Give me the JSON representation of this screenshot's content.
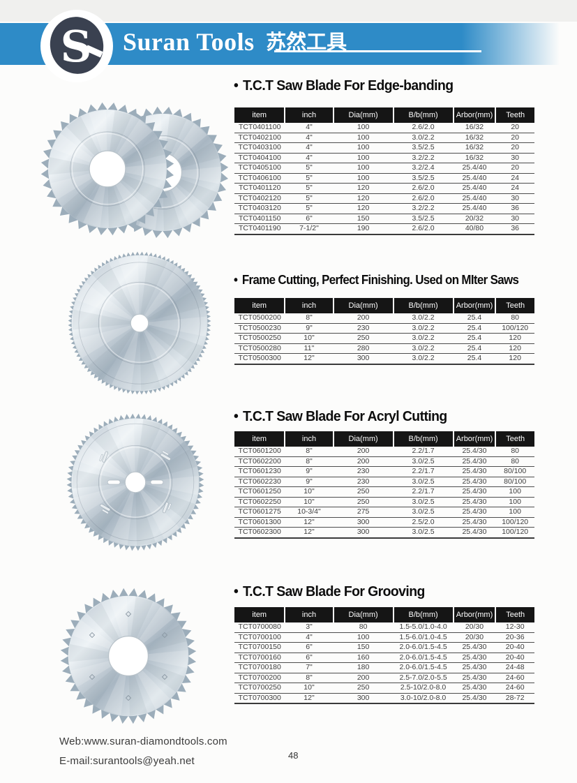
{
  "header": {
    "brand_en": "Suran Tools",
    "brand_cn": "苏然工具",
    "logo_monogram": "S"
  },
  "sections": [
    {
      "bullet": "•",
      "title": "T.C.T Saw Blade For Edge-banding",
      "image": "two-overlapping-tct-saw-blades",
      "columns": [
        "item",
        "inch",
        "Dia(mm)",
        "B/b(mm)",
        "Arbor(mm)",
        "Teeth"
      ],
      "rows": [
        [
          "TCT0401100",
          "4\"",
          "100",
          "2.6/2.0",
          "16/32",
          "20"
        ],
        [
          "TCT0402100",
          "4\"",
          "100",
          "3.0/2.2",
          "16/32",
          "20"
        ],
        [
          "TCT0403100",
          "4\"",
          "100",
          "3.5/2.5",
          "16/32",
          "20"
        ],
        [
          "TCT0404100",
          "4\"",
          "100",
          "3.2/2.2",
          "16/32",
          "30"
        ],
        [
          "TCT0405100",
          "5\"",
          "100",
          "3.2/2.4",
          "25.4/40",
          "20"
        ],
        [
          "TCT0406100",
          "5\"",
          "100",
          "3.5/2.5",
          "25.4/40",
          "24"
        ],
        [
          "TCT0401120",
          "5\"",
          "120",
          "2.6/2.0",
          "25.4/40",
          "24"
        ],
        [
          "TCT0402120",
          "5\"",
          "120",
          "2.6/2.0",
          "25.4/40",
          "30"
        ],
        [
          "TCT0403120",
          "5\"",
          "120",
          "3.2/2.2",
          "25.4/40",
          "36"
        ],
        [
          "TCT0401150",
          "6\"",
          "150",
          "3.5/2.5",
          "20/32",
          "30"
        ],
        [
          "TCT0401190",
          "7-1/2\"",
          "190",
          "2.6/2.0",
          "40/80",
          "36"
        ]
      ]
    },
    {
      "bullet": "•",
      "title": "Frame Cutting, Perfect Finishing. Used on MIter Saws",
      "image": "fine-tooth-tct-saw-blade",
      "columns": [
        "item",
        "inch",
        "Dia(mm)",
        "B/b(mm)",
        "Arbor(mm)",
        "Teeth"
      ],
      "rows": [
        [
          "TCT0500200",
          "8\"",
          "200",
          "3.0/2.2",
          "25.4",
          "80"
        ],
        [
          "TCT0500230",
          "9\"",
          "230",
          "3.0/2.2",
          "25.4",
          "100/120"
        ],
        [
          "TCT0500250",
          "10\"",
          "250",
          "3.0/2.2",
          "25.4",
          "120"
        ],
        [
          "TCT0500280",
          "11\"",
          "280",
          "3.0/2.2",
          "25.4",
          "120"
        ],
        [
          "TCT0500300",
          "12\"",
          "300",
          "3.0/2.2",
          "25.4",
          "120"
        ]
      ]
    },
    {
      "bullet": "•",
      "title": "T.C.T Saw Blade For Acryl Cutting",
      "image": "tct-saw-blade-with-expansion-slots",
      "columns": [
        "item",
        "inch",
        "Dia(mm)",
        "B/b(mm)",
        "Arbor(mm)",
        "Teeth"
      ],
      "rows": [
        [
          "TCT0601200",
          "8\"",
          "200",
          "2.2/1.7",
          "25.4/30",
          "80"
        ],
        [
          "TCT0602200",
          "8\"",
          "200",
          "3.0/2.5",
          "25.4/30",
          "80"
        ],
        [
          "TCT0601230",
          "9\"",
          "230",
          "2.2/1.7",
          "25.4/30",
          "80/100"
        ],
        [
          "TCT0602230",
          "9\"",
          "230",
          "3.0/2.5",
          "25.4/30",
          "80/100"
        ],
        [
          "TCT0601250",
          "10\"",
          "250",
          "2.2/1.7",
          "25.4/30",
          "100"
        ],
        [
          "TCT0602250",
          "10\"",
          "250",
          "3.0/2.5",
          "25.4/30",
          "100"
        ],
        [
          "TCT0601275",
          "10-3/4\"",
          "275",
          "3.0/2.5",
          "25.4/30",
          "100"
        ],
        [
          "TCT0601300",
          "12\"",
          "300",
          "2.5/2.0",
          "25.4/30",
          "100/120"
        ],
        [
          "TCT0602300",
          "12\"",
          "300",
          "3.0/2.5",
          "25.4/30",
          "100/120"
        ]
      ]
    },
    {
      "bullet": "•",
      "title": "T.C.T Saw Blade For Grooving",
      "image": "coarse-tooth-grooving-saw-blade",
      "columns": [
        "item",
        "inch",
        "Dia(mm)",
        "B/b(mm)",
        "Arbor(mm)",
        "Teeth"
      ],
      "rows": [
        [
          "TCT0700080",
          "3\"",
          "80",
          "1.5-5.0/1.0-4.0",
          "20/30",
          "12-30"
        ],
        [
          "TCT0700100",
          "4\"",
          "100",
          "1.5-6.0/1.0-4.5",
          "20/30",
          "20-36"
        ],
        [
          "TCT0700150",
          "6\"",
          "150",
          "2.0-6.0/1.5-4.5",
          "25.4/30",
          "20-40"
        ],
        [
          "TCT0700160",
          "6\"",
          "160",
          "2.0-6.0/1.5-4.5",
          "25.4/30",
          "20-40"
        ],
        [
          "TCT0700180",
          "7\"",
          "180",
          "2.0-6.0/1.5-4.5",
          "25.4/30",
          "24-48"
        ],
        [
          "TCT0700200",
          "8\"",
          "200",
          "2.5-7.0/2.0-5.5",
          "25.4/30",
          "24-60"
        ],
        [
          "TCT0700250",
          "10\"",
          "250",
          "2.5-10/2.0-8.0",
          "25.4/30",
          "24-60"
        ],
        [
          "TCT0700300",
          "12\"",
          "300",
          "3.0-10/2.0-8.0",
          "25.4/30",
          "28-72"
        ]
      ]
    }
  ],
  "footer": {
    "web": "Web:www.suran-diamondtools.com",
    "email": "E-mail:surantools@yeah.net",
    "page_number": "48"
  },
  "colors": {
    "banner_blue": "#2E8BC7",
    "logo_navy": "#3A4150",
    "table_header_bg": "#151515",
    "metal_light": "#EEF3F6",
    "metal_mid": "#B7C2CC",
    "metal_dark": "#A8B6C2",
    "tooth_gray": "#9CADBA"
  }
}
